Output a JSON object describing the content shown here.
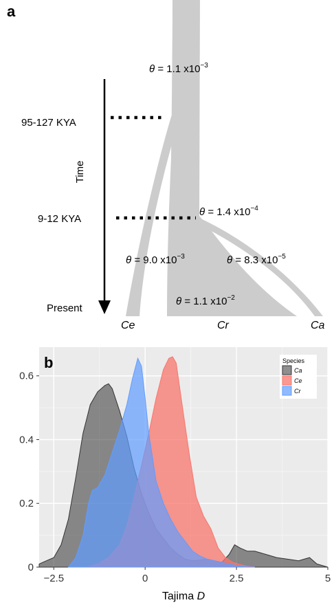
{
  "panel_a": {
    "label": "a",
    "time_label": "Time",
    "time_points": [
      "95-127 KYA",
      "9-12 KYA"
    ],
    "present_label": "Present",
    "theta_symbol": "θ",
    "thetas": [
      {
        "value": "= 1.1 x10",
        "exp": "−3"
      },
      {
        "value": "= 1.4 x10",
        "exp": "−4"
      },
      {
        "value": "= 9.0 x10",
        "exp": "−3"
      },
      {
        "value": "= 8.3 x10",
        "exp": "−5"
      },
      {
        "value": "= 1.1 x10",
        "exp": "−2"
      }
    ],
    "species": [
      "Ce",
      "Cr",
      "Ca"
    ],
    "tree_color": "#cccccc"
  },
  "panel_b": {
    "label": "b",
    "legend": {
      "title": "Species",
      "items": [
        "Ca",
        "Ce",
        "Cr"
      ]
    },
    "xlabel_prefix": "Tajima ",
    "xlabel_italic": "D",
    "panel_bg": "#ebebeb"
  },
  "chart_data": {
    "type": "area",
    "title": "",
    "xlabel": "Tajima D",
    "ylabel": "",
    "xlim": [
      -2.9,
      5.0
    ],
    "ylim": [
      0,
      0.69
    ],
    "xticks": [
      -2.5,
      0,
      2.5,
      5
    ],
    "xtick_labels": [
      "−2.5",
      "0",
      "2.5",
      "5"
    ],
    "yticks": [
      0,
      0.2,
      0.4,
      0.6
    ],
    "ytick_labels": [
      "0",
      "0.2",
      "0.4",
      "0.6"
    ],
    "grid": true,
    "legend_position": "top-right",
    "series": [
      {
        "name": "Ca",
        "color": "#333333",
        "opacity": 0.55,
        "x": [
          -2.9,
          -2.7,
          -2.5,
          -2.3,
          -2.1,
          -1.9,
          -1.7,
          -1.5,
          -1.3,
          -1.1,
          -1.0,
          -0.9,
          -0.7,
          -0.5,
          -0.3,
          -0.1,
          0.1,
          0.3,
          0.5,
          0.7,
          0.9,
          1.1,
          1.3,
          1.5,
          1.7,
          1.9,
          2.1,
          2.3,
          2.45,
          2.6,
          2.8,
          3.0,
          3.3,
          3.6,
          3.9,
          4.2,
          4.5,
          4.7,
          5.0
        ],
        "y": [
          0.01,
          0.02,
          0.03,
          0.07,
          0.15,
          0.28,
          0.42,
          0.51,
          0.55,
          0.57,
          0.575,
          0.56,
          0.49,
          0.41,
          0.31,
          0.23,
          0.17,
          0.12,
          0.09,
          0.06,
          0.04,
          0.025,
          0.02,
          0.022,
          0.025,
          0.02,
          0.015,
          0.04,
          0.07,
          0.06,
          0.05,
          0.05,
          0.04,
          0.03,
          0.025,
          0.02,
          0.03,
          0.01,
          0.0
        ]
      },
      {
        "name": "Ce",
        "color": "#f8766d",
        "opacity": 0.75,
        "x": [
          -1.6,
          -1.3,
          -1.0,
          -0.7,
          -0.5,
          -0.3,
          -0.1,
          0.1,
          0.3,
          0.5,
          0.65,
          0.75,
          0.85,
          1.0,
          1.2,
          1.4,
          1.6,
          1.8,
          2.0,
          2.2,
          2.4,
          2.6,
          2.8,
          3.0
        ],
        "y": [
          0.0,
          0.01,
          0.03,
          0.07,
          0.13,
          0.22,
          0.32,
          0.42,
          0.53,
          0.62,
          0.655,
          0.66,
          0.64,
          0.52,
          0.36,
          0.22,
          0.16,
          0.12,
          0.06,
          0.03,
          0.015,
          0.008,
          0.003,
          0.0
        ]
      },
      {
        "name": "Cr",
        "color": "#619cff",
        "opacity": 0.7,
        "x": [
          -2.1,
          -1.9,
          -1.7,
          -1.55,
          -1.45,
          -1.3,
          -1.1,
          -0.9,
          -0.7,
          -0.5,
          -0.35,
          -0.2,
          -0.1,
          0.0,
          0.1,
          0.3,
          0.5,
          0.7,
          0.9,
          1.1,
          1.3,
          1.5,
          1.7,
          1.9,
          2.1,
          2.3,
          2.5,
          2.7,
          3.0
        ],
        "y": [
          0.0,
          0.03,
          0.1,
          0.2,
          0.24,
          0.25,
          0.29,
          0.36,
          0.43,
          0.51,
          0.59,
          0.655,
          0.63,
          0.53,
          0.42,
          0.27,
          0.2,
          0.15,
          0.11,
          0.08,
          0.05,
          0.035,
          0.025,
          0.02,
          0.015,
          0.01,
          0.005,
          0.002,
          0.0
        ]
      }
    ]
  }
}
